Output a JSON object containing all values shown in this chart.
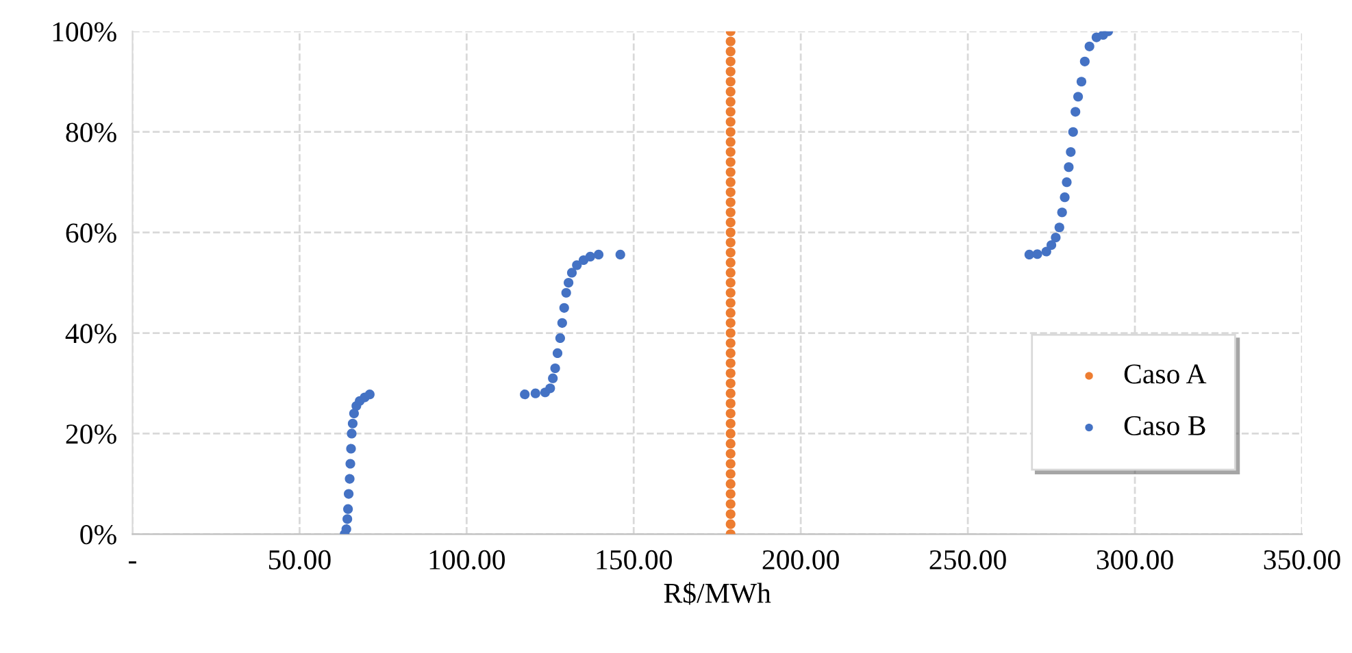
{
  "chart_data": {
    "type": "scatter",
    "xlabel": "R$/MWh",
    "xlim": [
      0,
      350
    ],
    "xticks": [
      {
        "value": 0,
        "label": "-"
      },
      {
        "value": 50,
        "label": "50.00"
      },
      {
        "value": 100,
        "label": "100.00"
      },
      {
        "value": 150,
        "label": "150.00"
      },
      {
        "value": 200,
        "label": "200.00"
      },
      {
        "value": 250,
        "label": "250.00"
      },
      {
        "value": 300,
        "label": "300.00"
      },
      {
        "value": 350,
        "label": "350.00"
      }
    ],
    "ylim": [
      0,
      100
    ],
    "yticks": [
      {
        "value": 0,
        "label": "0%"
      },
      {
        "value": 20,
        "label": "20%"
      },
      {
        "value": 40,
        "label": "40%"
      },
      {
        "value": 60,
        "label": "60%"
      },
      {
        "value": 80,
        "label": "80%"
      },
      {
        "value": 100,
        "label": "100%"
      }
    ],
    "grid": true,
    "legend": "bottom right",
    "marker": "circle",
    "series": [
      {
        "name": "Caso A",
        "color": "#ed7d31",
        "x": [
          179,
          179,
          179,
          179,
          179,
          179,
          179,
          179,
          179,
          179,
          179,
          179,
          179,
          179,
          179,
          179,
          179,
          179,
          179,
          179,
          179,
          179,
          179,
          179,
          179,
          179,
          179,
          179,
          179,
          179,
          179,
          179,
          179,
          179,
          179,
          179,
          179,
          179,
          179,
          179,
          179,
          179,
          179,
          179,
          179,
          179,
          179,
          179,
          179,
          179,
          179
        ],
        "values": [
          0,
          2,
          4,
          6,
          8,
          10,
          12,
          14,
          16,
          18,
          20,
          22,
          24,
          26,
          28,
          30,
          32,
          34,
          36,
          38,
          40,
          42,
          44,
          46,
          48,
          50,
          52,
          54,
          56,
          58,
          60,
          62,
          64,
          66,
          68,
          70,
          72,
          74,
          76,
          78,
          80,
          82,
          84,
          86,
          88,
          90,
          92,
          94,
          96,
          98,
          100
        ]
      },
      {
        "name": "Caso B",
        "color": "#4472c4",
        "x": [
          63.5,
          64,
          64.3,
          64.5,
          64.7,
          65,
          65.2,
          65.4,
          65.6,
          65.9,
          66.3,
          67,
          68,
          69.5,
          71,
          117.4,
          120.6,
          123.5,
          125,
          125.8,
          126.5,
          127.2,
          128,
          128.6,
          129.2,
          129.8,
          130.5,
          131.5,
          133,
          135,
          137,
          139.5,
          146,
          268.4,
          270.8,
          273.5,
          275,
          276.3,
          277.4,
          278.2,
          279,
          279.6,
          280.2,
          280.8,
          281.5,
          282.2,
          283,
          284,
          285,
          286.4,
          288.5,
          290.5,
          292
        ],
        "values": [
          0,
          1,
          3,
          5,
          8,
          11,
          14,
          17,
          20,
          22,
          24,
          25.5,
          26.5,
          27.2,
          27.8,
          27.8,
          28,
          28.2,
          29,
          31,
          33,
          36,
          39,
          42,
          45,
          48,
          50,
          52,
          53.5,
          54.5,
          55.2,
          55.6,
          55.6,
          55.6,
          55.7,
          56.2,
          57.5,
          59,
          61,
          64,
          67,
          70,
          73,
          76,
          80,
          84,
          87,
          90,
          94,
          97,
          98.8,
          99.3,
          100
        ]
      }
    ]
  }
}
